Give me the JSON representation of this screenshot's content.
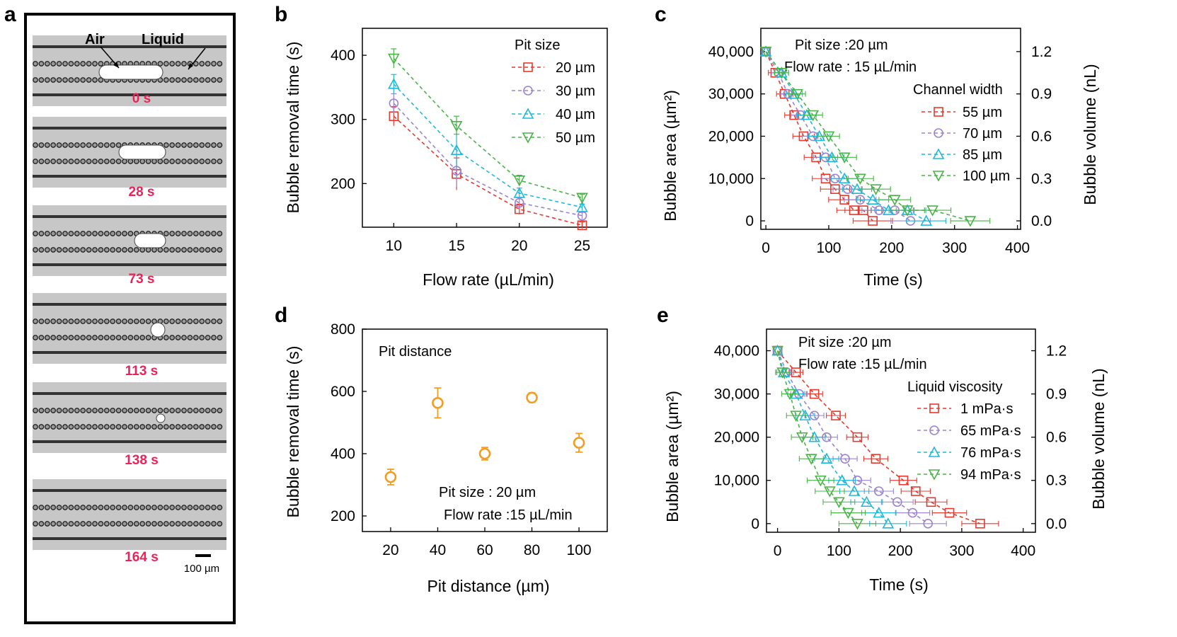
{
  "panel_a": {
    "letter": "a",
    "air_label": "Air",
    "liquid_label": "Liquid",
    "frames": [
      "0 s",
      "28 s",
      "73 s",
      "113 s",
      "138 s",
      "164 s"
    ],
    "scale_label": "100 µm",
    "colors": {
      "time": "#e8245a"
    }
  },
  "chart_data": [
    {
      "id": "b",
      "type": "line",
      "letter": "b",
      "title": "",
      "xlabel": "Flow rate (µL/min)",
      "ylabel": "Bubble removal time (s)",
      "x": [
        10,
        15,
        20,
        25
      ],
      "xticks": [
        "10",
        "15",
        "20",
        "25"
      ],
      "yticks": [
        "200",
        "300",
        "400"
      ],
      "xlim": [
        7.5,
        27
      ],
      "ylim": [
        132,
        442
      ],
      "legend_title": "Pit size",
      "series": [
        {
          "name": "20 µm",
          "marker": "square",
          "color": "#e8382d",
          "y": [
            305,
            215,
            160,
            135
          ],
          "err": [
            15,
            25,
            8,
            5
          ]
        },
        {
          "name": "30 µm",
          "marker": "circle",
          "color": "#9b83cf",
          "y": [
            325,
            220,
            170,
            150
          ],
          "err": [
            15,
            25,
            8,
            5
          ]
        },
        {
          "name": "40 µm",
          "marker": "triangle-up",
          "color": "#20b8d8",
          "y": [
            355,
            252,
            185,
            163
          ],
          "err": [
            15,
            25,
            8,
            5
          ]
        },
        {
          "name": "50 µm",
          "marker": "triangle-down",
          "color": "#48b446",
          "y": [
            395,
            290,
            205,
            178
          ],
          "err": [
            15,
            15,
            8,
            5
          ]
        }
      ]
    },
    {
      "id": "c",
      "type": "line",
      "letter": "c",
      "xlabel": "Time (s)",
      "ylabel": "Bubble area (µm²)",
      "y2label": "Bubble volume (nL)",
      "xticks": [
        "0",
        "100",
        "200",
        "300",
        "400"
      ],
      "xtick_values": [
        0,
        100,
        200,
        300,
        400
      ],
      "yticks": [
        "0",
        "10,000",
        "20,000",
        "30,000",
        "40,000"
      ],
      "ytick_values": [
        0,
        10000,
        20000,
        30000,
        40000
      ],
      "y2ticks": [
        "0.0",
        "0.3",
        "0.6",
        "0.9",
        "1.2"
      ],
      "xlim": [
        -8,
        405
      ],
      "ylim": [
        -2000,
        45500
      ],
      "annotations": [
        "Pit size :20 µm",
        "Flow rate : 15 µL/min"
      ],
      "legend_title": "Channel width",
      "series": [
        {
          "name": "55 µm",
          "marker": "square",
          "color": "#e8382d",
          "x": [
            0,
            15,
            30,
            45,
            60,
            80,
            95,
            110,
            125,
            140,
            155,
            170
          ],
          "y": [
            40000,
            35000,
            30000,
            25000,
            20000,
            15000,
            10000,
            7500,
            5000,
            2500,
            2500,
            0
          ]
        },
        {
          "name": "70 µm",
          "marker": "circle",
          "color": "#9b83cf",
          "x": [
            0,
            20,
            35,
            55,
            75,
            95,
            110,
            130,
            150,
            180,
            205,
            230
          ],
          "y": [
            40000,
            35000,
            30000,
            25000,
            20000,
            15000,
            10000,
            7500,
            5000,
            2500,
            2500,
            0
          ]
        },
        {
          "name": "85 µm",
          "marker": "triangle-up",
          "color": "#20b8d8",
          "x": [
            0,
            25,
            45,
            65,
            85,
            105,
            125,
            145,
            170,
            195,
            225,
            255
          ],
          "y": [
            40000,
            35000,
            30000,
            25000,
            20000,
            15000,
            10000,
            7500,
            5000,
            2500,
            2500,
            0
          ]
        },
        {
          "name": "100 µm",
          "marker": "triangle-down",
          "color": "#48b446",
          "x": [
            0,
            25,
            50,
            75,
            100,
            125,
            150,
            175,
            205,
            225,
            265,
            325
          ],
          "y": [
            40000,
            35000,
            30000,
            25000,
            20000,
            15000,
            10000,
            7500,
            5000,
            2500,
            2500,
            0
          ]
        }
      ]
    },
    {
      "id": "d",
      "type": "scatter",
      "letter": "d",
      "xlabel": "Pit distance (µm)",
      "ylabel": "Bubble removal time (s)",
      "xticks": [
        "20",
        "40",
        "60",
        "80",
        "100"
      ],
      "xtick_values": [
        20,
        40,
        60,
        80,
        100
      ],
      "yticks": [
        "200",
        "400",
        "600",
        "800"
      ],
      "ytick_values": [
        200,
        400,
        600,
        800
      ],
      "xlim": [
        8,
        112
      ],
      "ylim": [
        150,
        800
      ],
      "label": "Pit distance",
      "annotations": [
        "Pit size : 20 µm",
        "Flow rate :15 µL/min"
      ],
      "color": "#f39c1f",
      "x": [
        20,
        40,
        60,
        80,
        100
      ],
      "y": [
        325,
        563,
        400,
        580,
        435
      ],
      "err": [
        25,
        48,
        20,
        15,
        30
      ]
    },
    {
      "id": "e",
      "type": "line",
      "letter": "e",
      "xlabel": "Time (s)",
      "ylabel": "Bubble area (µm²)",
      "y2label": "Bubble volume (nL)",
      "xticks": [
        "0",
        "100",
        "200",
        "300",
        "400"
      ],
      "xtick_values": [
        0,
        100,
        200,
        300,
        400
      ],
      "yticks": [
        "0",
        "10,000",
        "20,000",
        "30,000",
        "40,000"
      ],
      "ytick_values": [
        0,
        10000,
        20000,
        30000,
        40000
      ],
      "y2ticks": [
        "0.0",
        "0.3",
        "0.6",
        "0.9",
        "1.2"
      ],
      "xlim": [
        -18,
        420
      ],
      "ylim": [
        -2000,
        45000
      ],
      "annotations": [
        "Pit size :20 µm",
        "Flow rate :15 µL/min"
      ],
      "legend_title": "Liquid viscosity",
      "series": [
        {
          "name": "1 mPa·s",
          "marker": "square",
          "color": "#e8382d",
          "x": [
            0,
            30,
            60,
            95,
            130,
            160,
            205,
            225,
            250,
            280,
            330
          ],
          "y": [
            40000,
            35000,
            30000,
            25000,
            20000,
            15000,
            10000,
            7500,
            5000,
            2500,
            0
          ]
        },
        {
          "name": "65 mPa·s",
          "marker": "circle",
          "color": "#9b83cf",
          "x": [
            0,
            15,
            35,
            60,
            80,
            110,
            130,
            165,
            195,
            220,
            245
          ],
          "y": [
            40000,
            35000,
            30000,
            25000,
            20000,
            15000,
            10000,
            7500,
            5000,
            2500,
            0
          ]
        },
        {
          "name": "76 mPa·s",
          "marker": "triangle-up",
          "color": "#20b8d8",
          "x": [
            0,
            10,
            30,
            45,
            60,
            80,
            105,
            125,
            145,
            165,
            180
          ],
          "y": [
            40000,
            35000,
            30000,
            25000,
            20000,
            15000,
            10000,
            7500,
            5000,
            2500,
            0
          ]
        },
        {
          "name": "94 mPa·s",
          "marker": "triangle-down",
          "color": "#48b446",
          "x": [
            0,
            8,
            20,
            30,
            40,
            55,
            70,
            85,
            100,
            115,
            130
          ],
          "y": [
            40000,
            35000,
            30000,
            25000,
            20000,
            15000,
            10000,
            7500,
            5000,
            2500,
            0
          ]
        }
      ]
    }
  ]
}
